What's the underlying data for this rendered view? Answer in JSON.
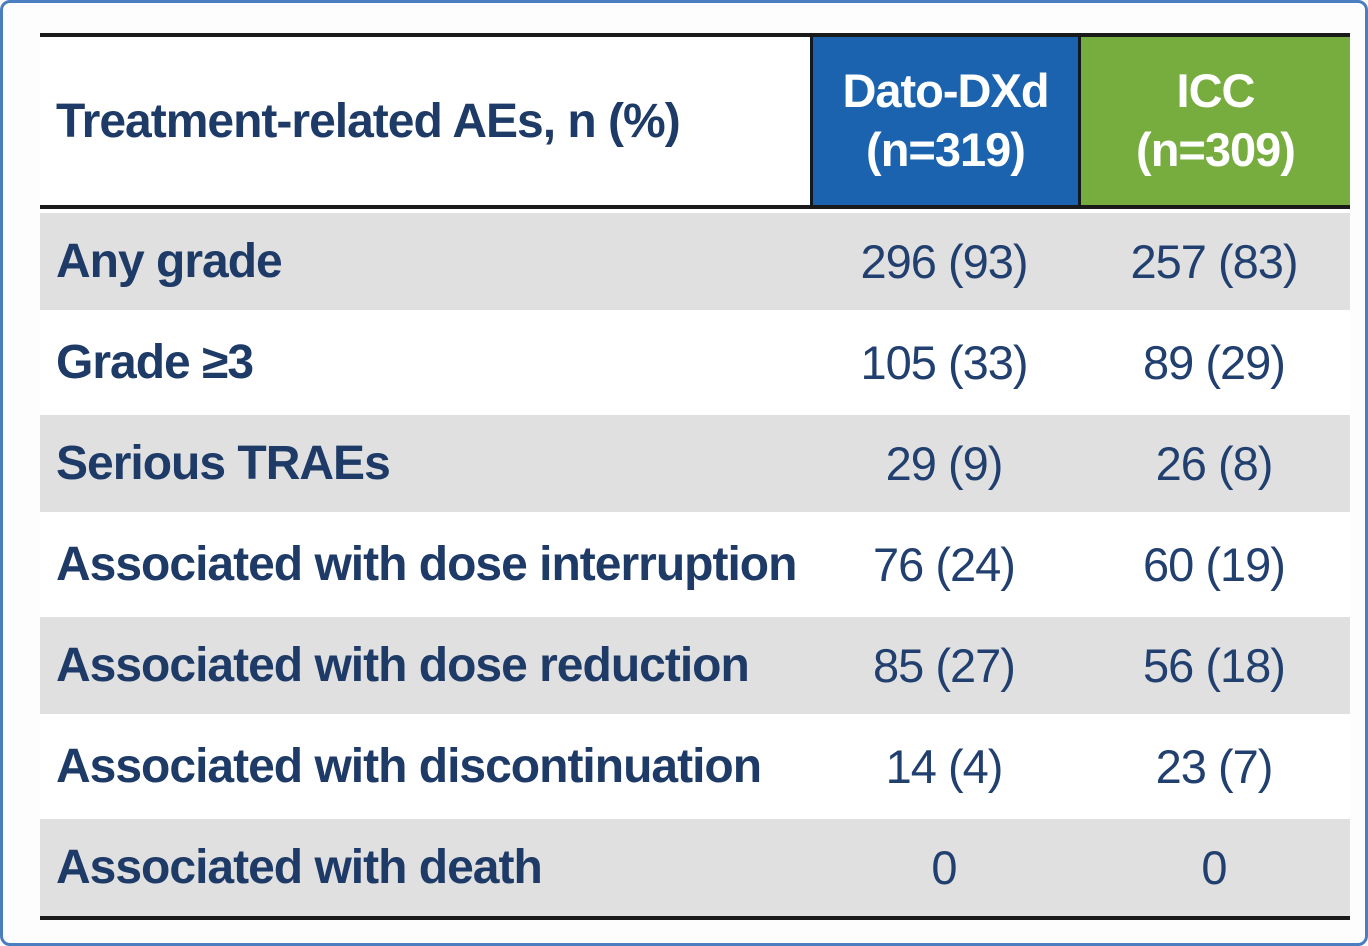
{
  "colors": {
    "frame_border": "#4a7ec1",
    "dato_header_bg": "#1b63ae",
    "icc_header_bg": "#77ac3e",
    "navy_text": "#1e3a67",
    "shaded_row_bg": "#e0e0e0",
    "rule_black": "#1a1a1a"
  },
  "table": {
    "header": {
      "row_label": "Treatment-related AEs, n (%)",
      "columns": [
        {
          "label": "Dato-DXd",
          "sub": "(n=319)",
          "color": "#1b63ae"
        },
        {
          "label": "ICC",
          "sub": "(n=309)",
          "color": "#77ac3e"
        }
      ]
    },
    "rows": [
      {
        "label": "Any grade",
        "dato": "296 (93)",
        "icc": "257 (83)"
      },
      {
        "label": "Grade ≥3",
        "dato": "105 (33)",
        "icc": "89 (29)"
      },
      {
        "label": "Serious TRAEs",
        "dato": "29 (9)",
        "icc": "26 (8)"
      },
      {
        "label": "Associated with dose interruption",
        "dato": "76 (24)",
        "icc": "60 (19)"
      },
      {
        "label": "Associated with dose reduction",
        "dato": "85 (27)",
        "icc": "56 (18)"
      },
      {
        "label": "Associated with discontinuation",
        "dato": "14 (4)",
        "icc": "23 (7)"
      },
      {
        "label": "Associated with death",
        "dato": "0",
        "icc": "0"
      }
    ]
  },
  "chart_data": {
    "type": "table",
    "title": "Treatment-related AEs, n (%)",
    "columns": [
      "Treatment-related AEs, n (%)",
      "Dato-DXd (n=319)",
      "ICC (n=309)"
    ],
    "rows": [
      [
        "Any grade",
        "296 (93)",
        "257 (83)"
      ],
      [
        "Grade ≥3",
        "105 (33)",
        "89 (29)"
      ],
      [
        "Serious TRAEs",
        "29 (9)",
        "26 (8)"
      ],
      [
        "Associated with dose interruption",
        "76 (24)",
        "60 (19)"
      ],
      [
        "Associated with dose reduction",
        "85 (27)",
        "56 (18)"
      ],
      [
        "Associated with discontinuation",
        "14 (4)",
        "23 (7)"
      ],
      [
        "Associated with death",
        "0",
        "0"
      ]
    ],
    "layout_hints": {
      "shaded_rows": [
        0,
        2,
        4,
        6
      ],
      "value_alignment": "center",
      "label_alignment": "left"
    }
  }
}
